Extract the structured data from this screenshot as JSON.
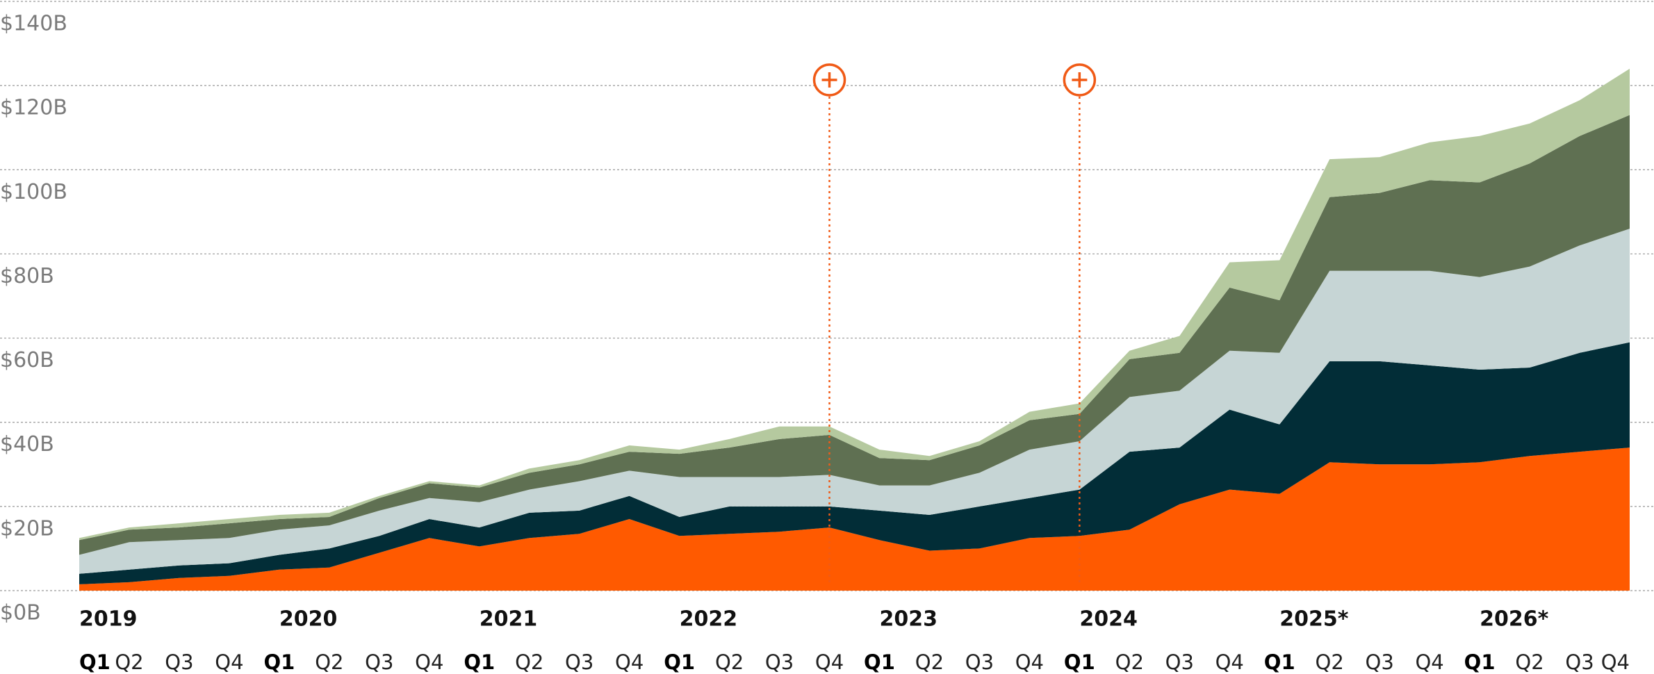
{
  "chart_data": {
    "type": "stacked_area",
    "categories": [
      "Q1",
      "Q2",
      "Q3",
      "Q4",
      "Q1",
      "Q2",
      "Q3",
      "Q4",
      "Q1",
      "Q2",
      "Q3",
      "Q4",
      "Q1",
      "Q2",
      "Q3",
      "Q4",
      "Q1",
      "Q2",
      "Q3",
      "Q4",
      "Q1",
      "Q2",
      "Q3",
      "Q4",
      "Q1",
      "Q2",
      "Q3",
      "Q4",
      "Q1",
      "Q2",
      "Q3",
      "Q4"
    ],
    "years": [
      "2019",
      "2020",
      "2021",
      "2022",
      "2023",
      "2024",
      "2025*",
      "2026*"
    ],
    "series": [
      {
        "color": "#ff5a00",
        "values": [
          1.5,
          2,
          3,
          3.5,
          5,
          5.5,
          9,
          12.5,
          10.5,
          12.5,
          13.5,
          17,
          13,
          13.5,
          14,
          15,
          12,
          9.5,
          10,
          12.5,
          13,
          14.5,
          20.5,
          24,
          23,
          30.5,
          30,
          30,
          30.5,
          32,
          33,
          34
        ]
      },
      {
        "color": "#022d37",
        "values": [
          2.5,
          3,
          3,
          3,
          3.5,
          4.5,
          4,
          4.5,
          4.5,
          6,
          5.5,
          5.5,
          4.5,
          6.5,
          6,
          5,
          7,
          8.5,
          10,
          9.5,
          11,
          18.5,
          13.5,
          19,
          16.5,
          24,
          24.5,
          23.5,
          22,
          21,
          23.5,
          25
        ]
      },
      {
        "color": "#c6d5d5",
        "values": [
          4.5,
          6.5,
          6,
          6,
          6,
          5.5,
          6,
          5,
          6,
          5.5,
          7,
          6,
          9.5,
          7,
          7,
          7.5,
          6,
          7,
          8,
          11.5,
          11.5,
          13,
          13.5,
          14,
          17,
          21.5,
          21.5,
          22.5,
          22,
          24,
          25.5,
          27
        ]
      },
      {
        "color": "#5f7052",
        "values": [
          3.5,
          3,
          3,
          3.5,
          2.5,
          2,
          3,
          3.5,
          3.5,
          4,
          4,
          4.5,
          5.5,
          7,
          9,
          9.5,
          6.5,
          6,
          6.5,
          7,
          6.5,
          9,
          9,
          15,
          12.5,
          17.5,
          18.5,
          21.5,
          22.5,
          24.5,
          26,
          27
        ]
      },
      {
        "color": "#b5c99f",
        "values": [
          0.5,
          0.5,
          1,
          1,
          1,
          1,
          0.5,
          0.5,
          0.5,
          1,
          1,
          1.5,
          1,
          2,
          3,
          2,
          2,
          1,
          1,
          2,
          2.5,
          2,
          4,
          6,
          9.5,
          9,
          8.5,
          9,
          11,
          9.5,
          8.5,
          11
        ]
      }
    ],
    "event_markers": [
      15,
      20
    ],
    "marker_color": "#f05a16",
    "ylim": [
      0,
      140
    ],
    "yticks": [
      {
        "value": 0,
        "label": "$0B"
      },
      {
        "value": 20,
        "label": "$20B"
      },
      {
        "value": 40,
        "label": "$40B"
      },
      {
        "value": 60,
        "label": "$60B"
      },
      {
        "value": 80,
        "label": "$80B"
      },
      {
        "value": 100,
        "label": "$100B"
      },
      {
        "value": 120,
        "label": "$120B"
      },
      {
        "value": 140,
        "label": "$140B"
      }
    ],
    "grid": true
  }
}
